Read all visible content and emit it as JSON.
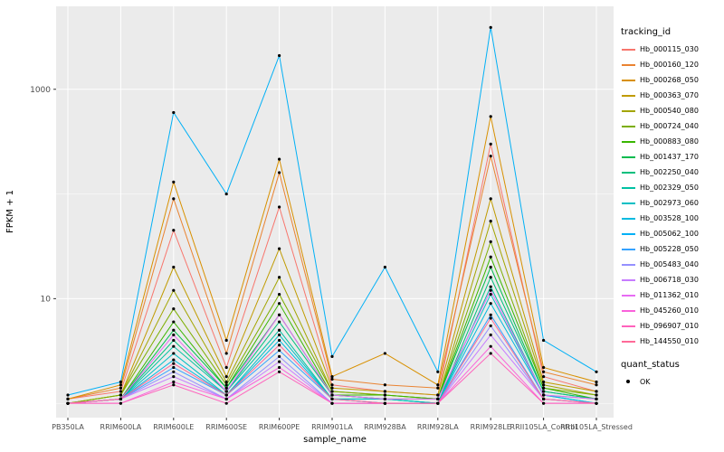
{
  "figure": {
    "background": "#FFFFFF"
  },
  "chart_data": {
    "type": "line",
    "title": "",
    "xlabel": "sample_name",
    "ylabel": "FPKM + 1",
    "y_scale": "log10",
    "y_ticks": [
      10,
      1000
    ],
    "y_minor": [
      1,
      100
    ],
    "y_range": [
      0.73,
      6200
    ],
    "panel_background": "#EBEBEB",
    "gridline_color": "#FFFFFF",
    "tick_label_color": "#4D4D4D",
    "axis_title_color": "#000000",
    "point_color": "#000000",
    "legend_position": "right",
    "legend_tracking_title": "tracking_id",
    "legend_quant_title": "quant_status",
    "quant_label": "OK",
    "categories": [
      "PB350LA",
      "RRIM600LA",
      "RRIM600LE",
      "RRIM600SE",
      "RRIM600PE",
      "RRIM901LA",
      "RRIM928BA",
      "RRIM928LA",
      "RRIM928LE",
      "RRII105LA_Control",
      "RRII105LA_Stressed"
    ],
    "series": [
      {
        "name": "Hb_000115_030",
        "color": "#F8766D",
        "values": [
          1.1,
          1.3,
          45,
          2.2,
          75,
          1.5,
          1.3,
          1.2,
          300,
          1.8,
          1.3
        ]
      },
      {
        "name": "Hb_000160_120",
        "color": "#EA8331",
        "values": [
          1.1,
          1.4,
          90,
          3.0,
          160,
          1.7,
          1.5,
          1.4,
          230,
          2.0,
          1.5
        ]
      },
      {
        "name": "Hb_000268_050",
        "color": "#D89000",
        "values": [
          1.1,
          1.5,
          130,
          4.0,
          215,
          1.8,
          3.0,
          1.5,
          550,
          2.2,
          1.6
        ]
      },
      {
        "name": "Hb_000363_070",
        "color": "#C09B00",
        "values": [
          1.0,
          1.2,
          20,
          1.8,
          30,
          1.4,
          1.3,
          1.2,
          90,
          1.6,
          1.3
        ]
      },
      {
        "name": "Hb_000540_080",
        "color": "#A3A500",
        "values": [
          1.0,
          1.2,
          12,
          1.6,
          16,
          1.3,
          1.2,
          1.1,
          55,
          1.5,
          1.2
        ]
      },
      {
        "name": "Hb_000724_040",
        "color": "#7CAE00",
        "values": [
          1.0,
          1.2,
          8,
          1.5,
          11,
          1.3,
          1.2,
          1.1,
          35,
          1.4,
          1.2
        ]
      },
      {
        "name": "Hb_000883_080",
        "color": "#39B600",
        "values": [
          1.0,
          1.1,
          6,
          1.4,
          9,
          1.2,
          1.2,
          1.1,
          25,
          1.4,
          1.1
        ]
      },
      {
        "name": "Hb_001437_170",
        "color": "#00BB4E",
        "values": [
          1.0,
          1.1,
          5,
          1.4,
          7,
          1.2,
          1.1,
          1.1,
          20,
          1.3,
          1.1
        ]
      },
      {
        "name": "Hb_002250_040",
        "color": "#00BF7D",
        "values": [
          1.0,
          1.1,
          4,
          1.3,
          6,
          1.2,
          1.1,
          1.0,
          16,
          1.3,
          1.1
        ]
      },
      {
        "name": "Hb_002329_050",
        "color": "#00C1A3",
        "values": [
          1.0,
          1.1,
          3.5,
          1.3,
          5,
          1.1,
          1.1,
          1.0,
          13,
          1.2,
          1.1
        ]
      },
      {
        "name": "Hb_002973_060",
        "color": "#00BFC4",
        "values": [
          1.0,
          1.1,
          3.0,
          1.2,
          4.5,
          1.1,
          1.1,
          1.0,
          11,
          1.2,
          1.0
        ]
      },
      {
        "name": "Hb_003528_100",
        "color": "#00BAE0",
        "values": [
          1.0,
          1.1,
          2.6,
          1.2,
          4.0,
          1.1,
          1.0,
          1.0,
          9,
          1.2,
          1.0
        ]
      },
      {
        "name": "Hb_005062_100",
        "color": "#00B0F6",
        "values": [
          1.2,
          1.6,
          600,
          100,
          2100,
          2.8,
          20,
          2.0,
          3900,
          4.0,
          2.0
        ]
      },
      {
        "name": "Hb_005228_050",
        "color": "#35A2FF",
        "values": [
          1.0,
          1.1,
          2.2,
          1.2,
          3.2,
          1.1,
          1.0,
          1.0,
          7,
          1.1,
          1.0
        ]
      },
      {
        "name": "Hb_005483_040",
        "color": "#9590FF",
        "values": [
          1.0,
          1.1,
          2.0,
          1.1,
          2.8,
          1.0,
          1.0,
          1.0,
          5.5,
          1.1,
          1.0
        ]
      },
      {
        "name": "Hb_006718_030",
        "color": "#C77CFF",
        "values": [
          1.0,
          1.1,
          1.8,
          1.1,
          2.5,
          1.0,
          1.0,
          1.0,
          4.5,
          1.1,
          1.0
        ]
      },
      {
        "name": "Hb_011362_010",
        "color": "#E76BF3",
        "values": [
          1.0,
          1.1,
          4.5,
          1.3,
          7.0,
          1.2,
          1.1,
          1.1,
          12,
          1.2,
          1.1
        ]
      },
      {
        "name": "Hb_045260_010",
        "color": "#FA62DB",
        "values": [
          1.0,
          1.0,
          1.6,
          1.1,
          2.2,
          1.0,
          1.0,
          1.0,
          3.5,
          1.0,
          1.0
        ]
      },
      {
        "name": "Hb_096907_010",
        "color": "#FF62BC",
        "values": [
          1.0,
          1.0,
          1.5,
          1.0,
          2.0,
          1.0,
          1.0,
          1.0,
          3.0,
          1.0,
          1.0
        ]
      },
      {
        "name": "Hb_144550_010",
        "color": "#FF6A98",
        "values": [
          1.0,
          1.1,
          2.4,
          1.2,
          3.6,
          1.1,
          1.0,
          1.0,
          6.5,
          1.1,
          1.0
        ]
      }
    ]
  }
}
